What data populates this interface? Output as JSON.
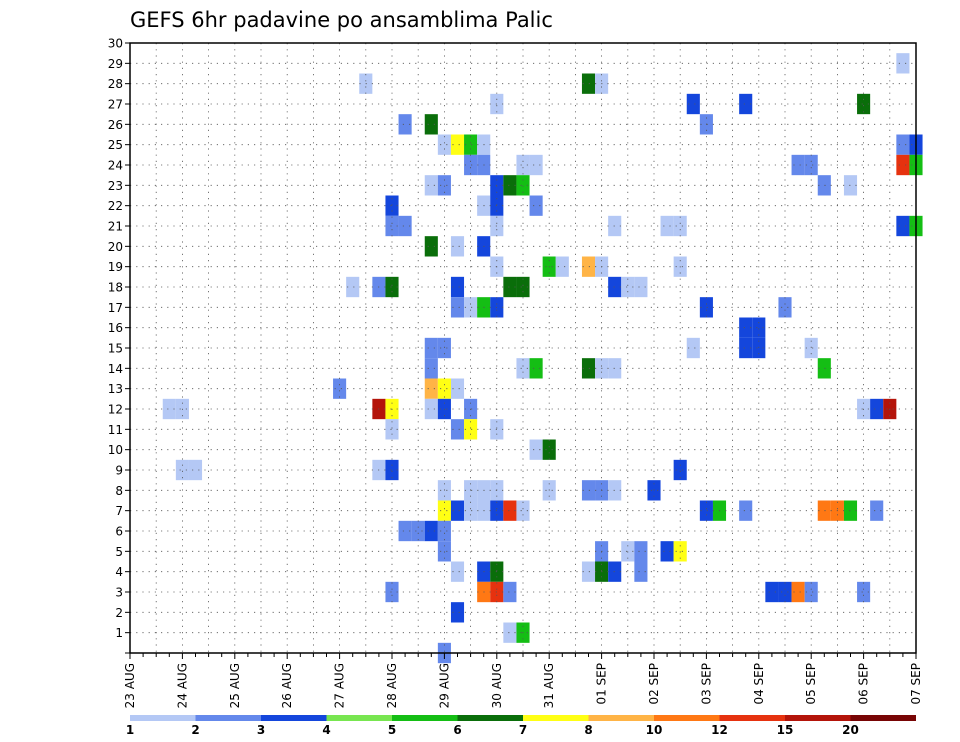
{
  "chart_data": {
    "type": "heatmap",
    "title": "GEFS 6hr padavine po ansamblima Palic",
    "xlabel": "",
    "ylabel": "",
    "x_ticks": [
      "23 AUG",
      "24 AUG",
      "25 AUG",
      "26 AUG",
      "27 AUG",
      "28 AUG",
      "29 AUG",
      "30 AUG",
      "31 AUG",
      "01 SEP",
      "02 SEP",
      "03 SEP",
      "04 SEP",
      "05 SEP",
      "06 SEP",
      "07 SEP"
    ],
    "y_range": [
      0,
      30
    ],
    "y_ticks": [
      1,
      2,
      3,
      4,
      5,
      6,
      7,
      8,
      9,
      10,
      11,
      12,
      13,
      14,
      15,
      16,
      17,
      18,
      19,
      20,
      21,
      22,
      23,
      24,
      25,
      26,
      27,
      28,
      29,
      30
    ],
    "x_unit": "6-hour step from 23 AUG 00Z",
    "x_range": [
      0,
      60
    ],
    "grid": true,
    "colorbar": {
      "labels": [
        "1",
        "2",
        "3",
        "4",
        "5",
        "6",
        "7",
        "8",
        "10",
        "12",
        "15",
        "20"
      ],
      "colors": [
        "#b4c8f5",
        "#6488eb",
        "#1446dc",
        "#78e650",
        "#14be14",
        "#0a6e0a",
        "#ffff14",
        "#ffb446",
        "#ff7814",
        "#e6320f",
        "#b4140a",
        "#780505"
      ]
    },
    "cells": [
      [
        59,
        29,
        0
      ],
      [
        18,
        28,
        0
      ],
      [
        35,
        28,
        5
      ],
      [
        36,
        28,
        0
      ],
      [
        28,
        27,
        0
      ],
      [
        43,
        27,
        2
      ],
      [
        47,
        27,
        2
      ],
      [
        56,
        27,
        5
      ],
      [
        21,
        26,
        1
      ],
      [
        23,
        26,
        5
      ],
      [
        44,
        26,
        1
      ],
      [
        24,
        25,
        0
      ],
      [
        25,
        25,
        6
      ],
      [
        26,
        25,
        4
      ],
      [
        27,
        25,
        0
      ],
      [
        59,
        25,
        1
      ],
      [
        60,
        25,
        2
      ],
      [
        26,
        24,
        1
      ],
      [
        27,
        24,
        1
      ],
      [
        30,
        24,
        0
      ],
      [
        31,
        24,
        0
      ],
      [
        51,
        24,
        1
      ],
      [
        52,
        24,
        1
      ],
      [
        59,
        24,
        9
      ],
      [
        60,
        24,
        4
      ],
      [
        23,
        23,
        0
      ],
      [
        24,
        23,
        1
      ],
      [
        28,
        23,
        2
      ],
      [
        29,
        23,
        5
      ],
      [
        30,
        23,
        4
      ],
      [
        53,
        23,
        1
      ],
      [
        55,
        23,
        0
      ],
      [
        20,
        22,
        2
      ],
      [
        27,
        22,
        0
      ],
      [
        28,
        22,
        2
      ],
      [
        31,
        22,
        1
      ],
      [
        20,
        21,
        1
      ],
      [
        21,
        21,
        1
      ],
      [
        28,
        21,
        0
      ],
      [
        37,
        21,
        0
      ],
      [
        41,
        21,
        0
      ],
      [
        42,
        21,
        0
      ],
      [
        59,
        21,
        2
      ],
      [
        60,
        21,
        4
      ],
      [
        23,
        20,
        5
      ],
      [
        25,
        20,
        0
      ],
      [
        27,
        20,
        2
      ],
      [
        28,
        19,
        0
      ],
      [
        32,
        19,
        4
      ],
      [
        33,
        19,
        0
      ],
      [
        35,
        19,
        7
      ],
      [
        36,
        19,
        0
      ],
      [
        42,
        19,
        0
      ],
      [
        17,
        18,
        0
      ],
      [
        19,
        18,
        1
      ],
      [
        20,
        18,
        5
      ],
      [
        25,
        18,
        2
      ],
      [
        29,
        18,
        5
      ],
      [
        30,
        18,
        5
      ],
      [
        37,
        18,
        2
      ],
      [
        38,
        18,
        0
      ],
      [
        39,
        18,
        0
      ],
      [
        25,
        17,
        1
      ],
      [
        26,
        17,
        0
      ],
      [
        27,
        17,
        4
      ],
      [
        28,
        17,
        2
      ],
      [
        44,
        17,
        2
      ],
      [
        50,
        17,
        1
      ],
      [
        47,
        16,
        2
      ],
      [
        48,
        16,
        2
      ],
      [
        23,
        15,
        1
      ],
      [
        24,
        15,
        1
      ],
      [
        43,
        15,
        0
      ],
      [
        47,
        15,
        2
      ],
      [
        48,
        15,
        2
      ],
      [
        52,
        15,
        0
      ],
      [
        23,
        14,
        1
      ],
      [
        30,
        14,
        0
      ],
      [
        31,
        14,
        4
      ],
      [
        35,
        14,
        5
      ],
      [
        36,
        14,
        0
      ],
      [
        37,
        14,
        0
      ],
      [
        53,
        14,
        4
      ],
      [
        16,
        13,
        1
      ],
      [
        23,
        13,
        7
      ],
      [
        24,
        13,
        6
      ],
      [
        25,
        13,
        0
      ],
      [
        3,
        12,
        0
      ],
      [
        4,
        12,
        0
      ],
      [
        19,
        12,
        10
      ],
      [
        20,
        12,
        6
      ],
      [
        23,
        12,
        0
      ],
      [
        24,
        12,
        2
      ],
      [
        26,
        12,
        1
      ],
      [
        56,
        12,
        0
      ],
      [
        57,
        12,
        2
      ],
      [
        58,
        12,
        10
      ],
      [
        20,
        11,
        0
      ],
      [
        25,
        11,
        1
      ],
      [
        26,
        11,
        6
      ],
      [
        28,
        11,
        0
      ],
      [
        31,
        10,
        0
      ],
      [
        32,
        10,
        5
      ],
      [
        4,
        9,
        0
      ],
      [
        5,
        9,
        0
      ],
      [
        19,
        9,
        0
      ],
      [
        20,
        9,
        2
      ],
      [
        42,
        9,
        2
      ],
      [
        24,
        8,
        0
      ],
      [
        26,
        8,
        0
      ],
      [
        27,
        8,
        0
      ],
      [
        28,
        8,
        0
      ],
      [
        32,
        8,
        0
      ],
      [
        35,
        8,
        1
      ],
      [
        36,
        8,
        1
      ],
      [
        37,
        8,
        0
      ],
      [
        40,
        8,
        2
      ],
      [
        24,
        7,
        6
      ],
      [
        25,
        7,
        2
      ],
      [
        26,
        7,
        0
      ],
      [
        27,
        7,
        0
      ],
      [
        28,
        7,
        2
      ],
      [
        29,
        7,
        9
      ],
      [
        30,
        7,
        0
      ],
      [
        44,
        7,
        2
      ],
      [
        45,
        7,
        4
      ],
      [
        47,
        7,
        1
      ],
      [
        53,
        7,
        8
      ],
      [
        54,
        7,
        8
      ],
      [
        55,
        7,
        4
      ],
      [
        57,
        7,
        1
      ],
      [
        21,
        6,
        1
      ],
      [
        22,
        6,
        1
      ],
      [
        23,
        6,
        2
      ],
      [
        24,
        6,
        1
      ],
      [
        24,
        5,
        1
      ],
      [
        36,
        5,
        1
      ],
      [
        38,
        5,
        0
      ],
      [
        39,
        5,
        1
      ],
      [
        41,
        5,
        2
      ],
      [
        42,
        5,
        6
      ],
      [
        25,
        4,
        0
      ],
      [
        27,
        4,
        2
      ],
      [
        28,
        4,
        5
      ],
      [
        35,
        4,
        0
      ],
      [
        36,
        4,
        5
      ],
      [
        37,
        4,
        2
      ],
      [
        39,
        4,
        1
      ],
      [
        20,
        3,
        1
      ],
      [
        27,
        3,
        8
      ],
      [
        28,
        3,
        9
      ],
      [
        29,
        3,
        1
      ],
      [
        49,
        3,
        2
      ],
      [
        50,
        3,
        2
      ],
      [
        51,
        3,
        8
      ],
      [
        52,
        3,
        1
      ],
      [
        56,
        3,
        1
      ],
      [
        25,
        2,
        2
      ],
      [
        29,
        1,
        0
      ],
      [
        30,
        1,
        4
      ],
      [
        24,
        0,
        1
      ]
    ]
  }
}
